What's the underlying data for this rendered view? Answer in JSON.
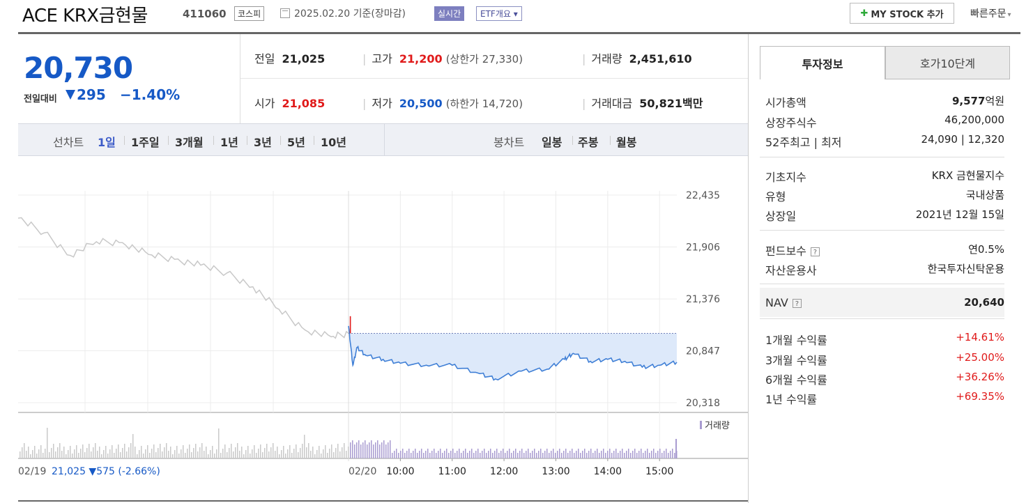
{
  "header": {
    "stock_name": "ACE KRX금현물",
    "stock_code": "411060",
    "market": "코스피",
    "date_text": "2025.02.20 기준(장마감)",
    "realtime": "실시간",
    "etf_overview": "ETF개요 ▾",
    "my_stock": "MY STOCK 추가",
    "quick_order": "빠른주문"
  },
  "price": {
    "current": "20,730",
    "change_label": "전일대비",
    "change_value": "295",
    "change_pct": "−1.40%"
  },
  "quote": {
    "prev_label": "전일",
    "prev_value": "21,025",
    "high_label": "고가",
    "high_value": "21,200",
    "upper_limit": "(상한가 27,330)",
    "volume_label": "거래량",
    "volume_value": "2,451,610",
    "open_label": "시가",
    "open_value": "21,085",
    "low_label": "저가",
    "low_value": "20,500",
    "lower_limit": "(하한가 14,720)",
    "amount_label": "거래대금",
    "amount_value": "50,821",
    "amount_unit": "백만"
  },
  "tabs": {
    "line_label": "선차트",
    "line_opts": [
      "1일",
      "1주일",
      "3개월",
      "1년",
      "3년",
      "5년",
      "10년"
    ],
    "candle_label": "봉차트",
    "candle_opts": [
      "일봉",
      "주봉",
      "월봉"
    ]
  },
  "chart_data": {
    "type": "line",
    "y_ticks": [
      "22,435",
      "21,906",
      "21,376",
      "20,847",
      "20,318"
    ],
    "ylim": [
      20318,
      22435
    ],
    "x_ticks": [
      "10:00",
      "11:00",
      "12:00",
      "13:00",
      "14:00",
      "15:00"
    ],
    "prev_day_label": "02/19",
    "prev_day_info": "21,025 ▼575 (-2.66%)",
    "today_label": "02/20",
    "volume_legend": "거래량",
    "prev_close": 21025,
    "series": [
      {
        "x": [
          "02/19 09:00",
          "02/19 09:30",
          "02/19 10:00",
          "02/19 10:30",
          "02/19 11:00",
          "02/19 11:30",
          "02/19 12:00",
          "02/19 12:30",
          "02/19 13:00",
          "02/19 13:30",
          "02/19 14:00",
          "02/19 14:30",
          "02/19 15:00",
          "02/19 15:20"
        ],
        "values": [
          22200,
          22050,
          21820,
          21960,
          21950,
          21830,
          21780,
          21720,
          21640,
          21500,
          21270,
          21060,
          20990,
          21025
        ]
      },
      {
        "x": [
          "09:00",
          "09:05",
          "09:10",
          "09:20",
          "09:40",
          "10:00",
          "10:30",
          "11:00",
          "11:30",
          "11:50",
          "12:20",
          "12:50",
          "13:10",
          "13:20",
          "13:40",
          "14:00",
          "14:20",
          "14:40",
          "15:00",
          "15:20"
        ],
        "values": [
          21100,
          20700,
          20880,
          20800,
          20760,
          20720,
          20700,
          20700,
          20620,
          20560,
          20640,
          20660,
          20760,
          20820,
          20740,
          20760,
          20740,
          20680,
          20700,
          20730
        ]
      }
    ]
  },
  "right_panel": {
    "tab_invest": "투자정보",
    "tab_order": "호가10단계",
    "rows": [
      {
        "k": "시가총액",
        "v": "9,577",
        "unit": "억원"
      },
      {
        "k": "상장주식수",
        "v": "46,200,000"
      },
      {
        "k": "52주최고 | 최저",
        "v": "24,090 | 12,320"
      },
      {
        "k": "기초지수",
        "v": "KRX 금현물지수"
      },
      {
        "k": "유형",
        "v": "국내상품"
      },
      {
        "k": "상장일",
        "v": "2021년 12월 15일"
      },
      {
        "k": "펀드보수",
        "v": "연0.5%"
      },
      {
        "k": "자산운용사",
        "v": "한국투자신탁운용"
      },
      {
        "k": "NAV",
        "v": "20,640"
      },
      {
        "k": "1개월 수익률",
        "v": "+14.61%"
      },
      {
        "k": "3개월 수익률",
        "v": "+25.00%"
      },
      {
        "k": "6개월 수익률",
        "v": "+36.26%"
      },
      {
        "k": "1년 수익률",
        "v": "+69.35%"
      }
    ]
  }
}
